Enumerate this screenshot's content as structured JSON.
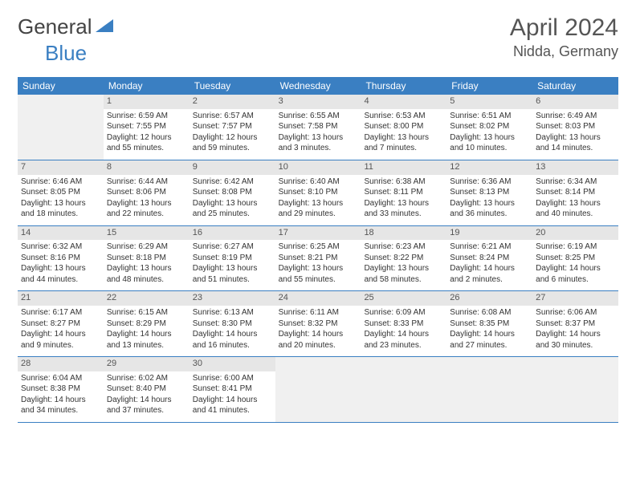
{
  "logo": {
    "word1": "General",
    "word2": "Blue"
  },
  "title": "April 2024",
  "location": "Nidda, Germany",
  "accent_color": "#3a7fc2",
  "header_bg": "#e6e6e6",
  "day_names": [
    "Sunday",
    "Monday",
    "Tuesday",
    "Wednesday",
    "Thursday",
    "Friday",
    "Saturday"
  ],
  "weeks": [
    [
      null,
      {
        "n": "1",
        "sr": "Sunrise: 6:59 AM",
        "ss": "Sunset: 7:55 PM",
        "d1": "Daylight: 12 hours",
        "d2": "and 55 minutes."
      },
      {
        "n": "2",
        "sr": "Sunrise: 6:57 AM",
        "ss": "Sunset: 7:57 PM",
        "d1": "Daylight: 12 hours",
        "d2": "and 59 minutes."
      },
      {
        "n": "3",
        "sr": "Sunrise: 6:55 AM",
        "ss": "Sunset: 7:58 PM",
        "d1": "Daylight: 13 hours",
        "d2": "and 3 minutes."
      },
      {
        "n": "4",
        "sr": "Sunrise: 6:53 AM",
        "ss": "Sunset: 8:00 PM",
        "d1": "Daylight: 13 hours",
        "d2": "and 7 minutes."
      },
      {
        "n": "5",
        "sr": "Sunrise: 6:51 AM",
        "ss": "Sunset: 8:02 PM",
        "d1": "Daylight: 13 hours",
        "d2": "and 10 minutes."
      },
      {
        "n": "6",
        "sr": "Sunrise: 6:49 AM",
        "ss": "Sunset: 8:03 PM",
        "d1": "Daylight: 13 hours",
        "d2": "and 14 minutes."
      }
    ],
    [
      {
        "n": "7",
        "sr": "Sunrise: 6:46 AM",
        "ss": "Sunset: 8:05 PM",
        "d1": "Daylight: 13 hours",
        "d2": "and 18 minutes."
      },
      {
        "n": "8",
        "sr": "Sunrise: 6:44 AM",
        "ss": "Sunset: 8:06 PM",
        "d1": "Daylight: 13 hours",
        "d2": "and 22 minutes."
      },
      {
        "n": "9",
        "sr": "Sunrise: 6:42 AM",
        "ss": "Sunset: 8:08 PM",
        "d1": "Daylight: 13 hours",
        "d2": "and 25 minutes."
      },
      {
        "n": "10",
        "sr": "Sunrise: 6:40 AM",
        "ss": "Sunset: 8:10 PM",
        "d1": "Daylight: 13 hours",
        "d2": "and 29 minutes."
      },
      {
        "n": "11",
        "sr": "Sunrise: 6:38 AM",
        "ss": "Sunset: 8:11 PM",
        "d1": "Daylight: 13 hours",
        "d2": "and 33 minutes."
      },
      {
        "n": "12",
        "sr": "Sunrise: 6:36 AM",
        "ss": "Sunset: 8:13 PM",
        "d1": "Daylight: 13 hours",
        "d2": "and 36 minutes."
      },
      {
        "n": "13",
        "sr": "Sunrise: 6:34 AM",
        "ss": "Sunset: 8:14 PM",
        "d1": "Daylight: 13 hours",
        "d2": "and 40 minutes."
      }
    ],
    [
      {
        "n": "14",
        "sr": "Sunrise: 6:32 AM",
        "ss": "Sunset: 8:16 PM",
        "d1": "Daylight: 13 hours",
        "d2": "and 44 minutes."
      },
      {
        "n": "15",
        "sr": "Sunrise: 6:29 AM",
        "ss": "Sunset: 8:18 PM",
        "d1": "Daylight: 13 hours",
        "d2": "and 48 minutes."
      },
      {
        "n": "16",
        "sr": "Sunrise: 6:27 AM",
        "ss": "Sunset: 8:19 PM",
        "d1": "Daylight: 13 hours",
        "d2": "and 51 minutes."
      },
      {
        "n": "17",
        "sr": "Sunrise: 6:25 AM",
        "ss": "Sunset: 8:21 PM",
        "d1": "Daylight: 13 hours",
        "d2": "and 55 minutes."
      },
      {
        "n": "18",
        "sr": "Sunrise: 6:23 AM",
        "ss": "Sunset: 8:22 PM",
        "d1": "Daylight: 13 hours",
        "d2": "and 58 minutes."
      },
      {
        "n": "19",
        "sr": "Sunrise: 6:21 AM",
        "ss": "Sunset: 8:24 PM",
        "d1": "Daylight: 14 hours",
        "d2": "and 2 minutes."
      },
      {
        "n": "20",
        "sr": "Sunrise: 6:19 AM",
        "ss": "Sunset: 8:25 PM",
        "d1": "Daylight: 14 hours",
        "d2": "and 6 minutes."
      }
    ],
    [
      {
        "n": "21",
        "sr": "Sunrise: 6:17 AM",
        "ss": "Sunset: 8:27 PM",
        "d1": "Daylight: 14 hours",
        "d2": "and 9 minutes."
      },
      {
        "n": "22",
        "sr": "Sunrise: 6:15 AM",
        "ss": "Sunset: 8:29 PM",
        "d1": "Daylight: 14 hours",
        "d2": "and 13 minutes."
      },
      {
        "n": "23",
        "sr": "Sunrise: 6:13 AM",
        "ss": "Sunset: 8:30 PM",
        "d1": "Daylight: 14 hours",
        "d2": "and 16 minutes."
      },
      {
        "n": "24",
        "sr": "Sunrise: 6:11 AM",
        "ss": "Sunset: 8:32 PM",
        "d1": "Daylight: 14 hours",
        "d2": "and 20 minutes."
      },
      {
        "n": "25",
        "sr": "Sunrise: 6:09 AM",
        "ss": "Sunset: 8:33 PM",
        "d1": "Daylight: 14 hours",
        "d2": "and 23 minutes."
      },
      {
        "n": "26",
        "sr": "Sunrise: 6:08 AM",
        "ss": "Sunset: 8:35 PM",
        "d1": "Daylight: 14 hours",
        "d2": "and 27 minutes."
      },
      {
        "n": "27",
        "sr": "Sunrise: 6:06 AM",
        "ss": "Sunset: 8:37 PM",
        "d1": "Daylight: 14 hours",
        "d2": "and 30 minutes."
      }
    ],
    [
      {
        "n": "28",
        "sr": "Sunrise: 6:04 AM",
        "ss": "Sunset: 8:38 PM",
        "d1": "Daylight: 14 hours",
        "d2": "and 34 minutes."
      },
      {
        "n": "29",
        "sr": "Sunrise: 6:02 AM",
        "ss": "Sunset: 8:40 PM",
        "d1": "Daylight: 14 hours",
        "d2": "and 37 minutes."
      },
      {
        "n": "30",
        "sr": "Sunrise: 6:00 AM",
        "ss": "Sunset: 8:41 PM",
        "d1": "Daylight: 14 hours",
        "d2": "and 41 minutes."
      },
      null,
      null,
      null,
      null
    ]
  ]
}
